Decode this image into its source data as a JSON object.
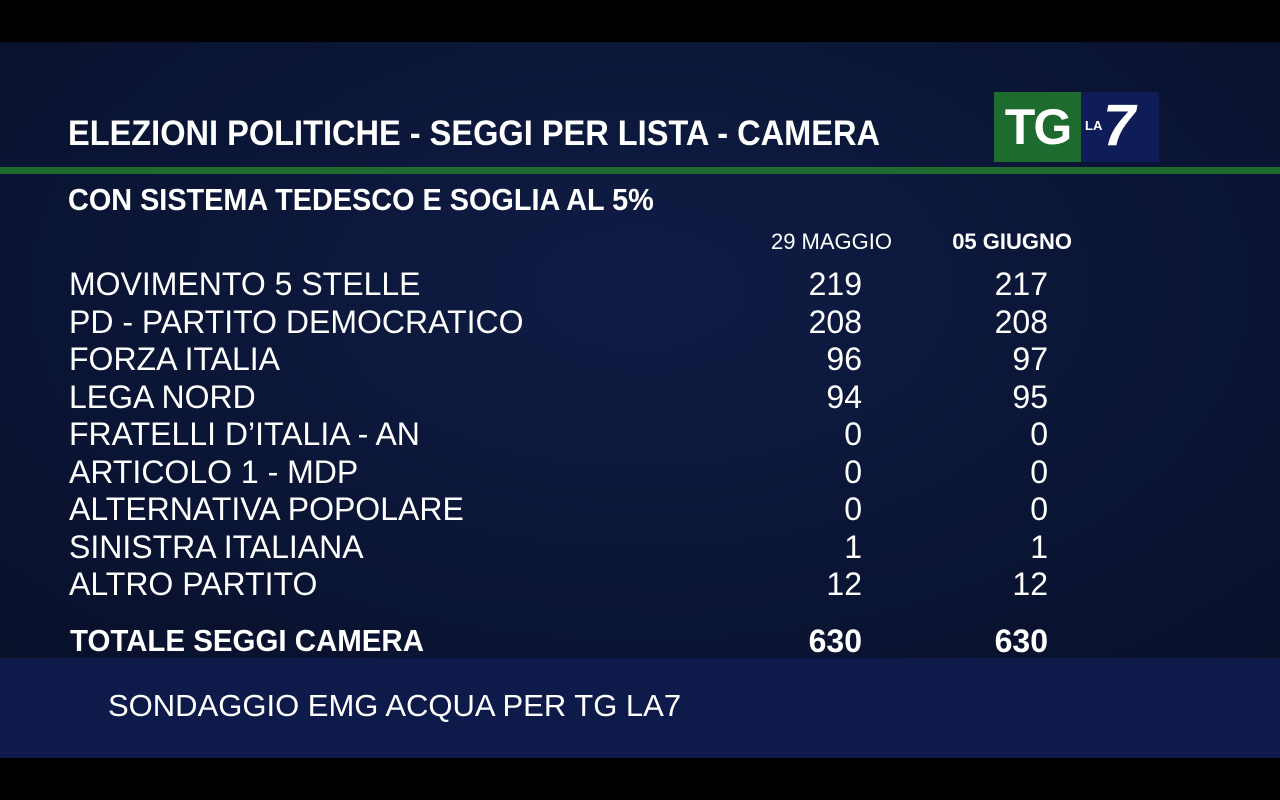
{
  "title": "ELEZIONI POLITICHE - SEGGI  PER  LISTA - CAMERA",
  "subtitle": "CON SISTEMA TEDESCO E SOGLIA AL 5%",
  "logo": {
    "tg": "TG",
    "la": "LA",
    "seven": "7",
    "colors": {
      "tg_bg": "#1d6b2e",
      "la7_bg": "#0e1d57"
    }
  },
  "columns": [
    "29 MAGGIO",
    "05 GIUGNO"
  ],
  "rows": [
    {
      "name": "MOVIMENTO 5 STELLE",
      "a": "219",
      "b": "217"
    },
    {
      "name": "PD - PARTITO DEMOCRATICO",
      "a": "208",
      "b": "208"
    },
    {
      "name": "FORZA ITALIA",
      "a": "96",
      "b": "97"
    },
    {
      "name": "LEGA NORD",
      "a": "94",
      "b": "95"
    },
    {
      "name": "FRATELLI D’ITALIA - AN",
      "a": "0",
      "b": "0"
    },
    {
      "name": "ARTICOLO 1  - MDP",
      "a": "0",
      "b": "0"
    },
    {
      "name": "ALTERNATIVA POPOLARE",
      "a": "0",
      "b": "0"
    },
    {
      "name": "SINISTRA ITALIANA",
      "a": "1",
      "b": "1"
    },
    {
      "name": "ALTRO PARTITO",
      "a": "12",
      "b": "12"
    }
  ],
  "total": {
    "name": "TOTALE SEGGI CAMERA",
    "a": "630",
    "b": "630"
  },
  "source": "SONDAGGIO EMG ACQUA PER TG LA7"
}
